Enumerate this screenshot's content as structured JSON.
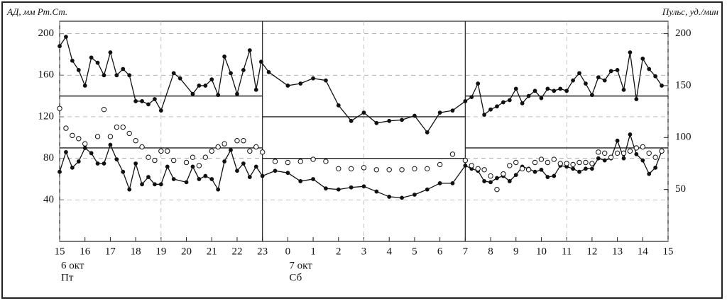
{
  "chart_data": {
    "type": "line",
    "y_label": "АД, мм Рт.Ст.",
    "y2_label": "Пульс, уд./мин",
    "date_labels": [
      {
        "x": 0,
        "date": "6 окт",
        "day": "Пт"
      },
      {
        "x": 9,
        "date": "7 окт",
        "day": "Сб"
      }
    ],
    "xlim": [
      0,
      24
    ],
    "xticks": [
      {
        "value": 0,
        "label": "15"
      },
      {
        "value": 1,
        "label": "16"
      },
      {
        "value": 2,
        "label": "17"
      },
      {
        "value": 3,
        "label": "18"
      },
      {
        "value": 4,
        "label": "19"
      },
      {
        "value": 5,
        "label": "20"
      },
      {
        "value": 6,
        "label": "21"
      },
      {
        "value": 7,
        "label": "22"
      },
      {
        "value": 8,
        "label": "23"
      },
      {
        "value": 9,
        "label": "0"
      },
      {
        "value": 10,
        "label": "1"
      },
      {
        "value": 11,
        "label": "2"
      },
      {
        "value": 12,
        "label": "3"
      },
      {
        "value": 13,
        "label": "4"
      },
      {
        "value": 14,
        "label": "5"
      },
      {
        "value": 15,
        "label": "6"
      },
      {
        "value": 16,
        "label": "7"
      },
      {
        "value": 17,
        "label": "8"
      },
      {
        "value": 18,
        "label": "9"
      },
      {
        "value": 19,
        "label": "10"
      },
      {
        "value": 20,
        "label": "11"
      },
      {
        "value": 21,
        "label": "12"
      },
      {
        "value": 22,
        "label": "13"
      },
      {
        "value": 23,
        "label": "14"
      },
      {
        "value": 24,
        "label": "15"
      }
    ],
    "ylim": [
      0,
      212
    ],
    "yticks": [
      40,
      80,
      120,
      160,
      200
    ],
    "y2lim": [
      0,
      212
    ],
    "y2ticks": [
      50,
      100,
      150,
      200
    ],
    "grid": true,
    "vertical_lines": [
      8,
      16
    ],
    "reference_lines": [
      {
        "x": [
          0,
          8
        ],
        "y": 140
      },
      {
        "x": [
          8,
          16
        ],
        "y": 120
      },
      {
        "x": [
          16,
          24
        ],
        "y": 140
      },
      {
        "x": [
          0,
          8
        ],
        "y": 90
      },
      {
        "x": [
          8,
          16
        ],
        "y": 80
      },
      {
        "x": [
          16,
          24
        ],
        "y": 90
      }
    ],
    "series": [
      {
        "color": "#111",
        "marker": "filled",
        "x": [
          0,
          0.25,
          0.5,
          0.75,
          1,
          1.25,
          1.5,
          1.75,
          2,
          2.25,
          2.5,
          2.75,
          3,
          3.25,
          3.5,
          3.75,
          4,
          4.5,
          4.75,
          5.25,
          5.5,
          5.75,
          6,
          6.25,
          6.5,
          6.75,
          7,
          7.25,
          7.5,
          7.75,
          7.95,
          8.25,
          9,
          9.5,
          10,
          10.5,
          11,
          11.5,
          12,
          12.5,
          13,
          13.5,
          14,
          14.5,
          15,
          15.5,
          16,
          16.25,
          16.5,
          16.75,
          17,
          17.25,
          17.5,
          17.75,
          18,
          18.25,
          18.5,
          18.75,
          19,
          19.25,
          19.5,
          19.75,
          20,
          20.25,
          20.5,
          20.75,
          21,
          21.25,
          21.5,
          21.75,
          22,
          22.25,
          22.5,
          22.75,
          23,
          23.25,
          23.5,
          23.75
        ],
        "values": [
          188,
          197,
          174,
          165,
          150,
          177,
          172,
          160,
          182,
          160,
          166,
          160,
          135,
          135,
          132,
          137,
          126,
          162,
          157,
          142,
          150,
          150,
          156,
          141,
          178,
          162,
          142,
          165,
          184,
          146,
          173,
          163,
          150,
          152,
          157,
          155,
          131,
          116,
          124,
          114,
          116,
          117,
          121,
          105,
          124,
          126,
          135,
          139,
          152,
          122,
          127,
          130,
          134,
          136,
          147,
          133,
          140,
          145,
          138,
          147,
          145,
          147,
          145,
          155,
          162,
          152,
          141,
          158,
          155,
          164,
          165,
          146,
          182,
          137,
          176,
          166,
          159,
          150
        ]
      },
      {
        "color": "#111",
        "marker": "filled",
        "x": [
          0,
          0.25,
          0.5,
          0.75,
          1,
          1.25,
          1.5,
          1.75,
          2,
          2.25,
          2.5,
          2.75,
          3,
          3.25,
          3.5,
          3.75,
          4,
          4.25,
          4.5,
          5,
          5.25,
          5.5,
          5.75,
          6,
          6.25,
          6.5,
          6.75,
          7,
          7.25,
          7.5,
          7.75,
          8,
          8.5,
          9,
          9.5,
          10,
          10.5,
          11,
          11.5,
          12,
          12.5,
          13,
          13.5,
          14,
          14.5,
          15,
          15.5,
          16,
          16.25,
          16.5,
          16.75,
          17,
          17.25,
          17.5,
          17.75,
          18,
          18.25,
          18.5,
          18.75,
          19,
          19.25,
          19.5,
          19.75,
          20,
          20.25,
          20.5,
          20.75,
          21,
          21.25,
          21.5,
          21.75,
          22,
          22.25,
          22.5,
          22.75,
          23,
          23.25,
          23.5,
          23.75
        ],
        "values": [
          67,
          86,
          71,
          77,
          90,
          85,
          75,
          75,
          93,
          79,
          67,
          50,
          75,
          55,
          62,
          55,
          55,
          72,
          60,
          57,
          72,
          60,
          63,
          60,
          50,
          77,
          88,
          68,
          75,
          62,
          72,
          63,
          68,
          66,
          58,
          60,
          51,
          50,
          52,
          53,
          48,
          43,
          42,
          45,
          50,
          56,
          56,
          73,
          70,
          68,
          58,
          57,
          61,
          63,
          58,
          64,
          72,
          70,
          67,
          69,
          62,
          63,
          73,
          72,
          70,
          67,
          70,
          70,
          80,
          78,
          80,
          97,
          80,
          103,
          84,
          78,
          65,
          71,
          87
        ]
      },
      {
        "color": "#111",
        "marker": "open",
        "axis": "y2",
        "x": [
          0,
          0.25,
          0.5,
          0.75,
          1,
          1.5,
          1.75,
          2,
          2.25,
          2.5,
          2.75,
          3,
          3.25,
          3.5,
          3.75,
          4,
          4.25,
          4.5,
          5,
          5.25,
          5.5,
          5.75,
          6,
          6.25,
          6.5,
          7,
          7.25,
          7.5,
          7.75,
          8,
          8.5,
          9,
          9.5,
          10,
          10.5,
          11,
          11.5,
          12,
          12.5,
          13,
          13.5,
          14,
          14.5,
          15,
          15.5,
          16,
          16.25,
          16.5,
          16.75,
          17,
          17.25,
          17.5,
          17.75,
          18,
          18.25,
          18.5,
          18.75,
          19,
          19.25,
          19.5,
          19.75,
          20,
          20.25,
          20.5,
          20.75,
          21,
          21.25,
          21.5,
          21.75,
          22,
          22.25,
          22.5,
          22.75,
          23,
          23.25,
          23.5,
          23.75
        ],
        "values": [
          128,
          109,
          102,
          99,
          94,
          101,
          127,
          101,
          110,
          110,
          104,
          97,
          91,
          81,
          78,
          87,
          87,
          78,
          76,
          81,
          73,
          81,
          87,
          91,
          94,
          97,
          97,
          87,
          91,
          86,
          77,
          76,
          77,
          79,
          77,
          70,
          70,
          71,
          69,
          69,
          69,
          70,
          70,
          74,
          84,
          78,
          73,
          70,
          69,
          63,
          50,
          65,
          73,
          76,
          70,
          69,
          76,
          79,
          76,
          79,
          75,
          75,
          74,
          76,
          76,
          75,
          86,
          85,
          81,
          85,
          85,
          87,
          90,
          91,
          85,
          81,
          87
        ]
      }
    ]
  }
}
